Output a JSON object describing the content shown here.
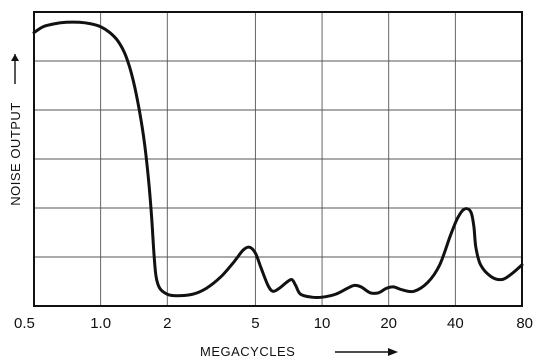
{
  "chart_data": {
    "type": "line",
    "title": "",
    "xlabel": "MEGACYCLES",
    "ylabel": "NOISE OUTPUT",
    "x_scale": "log",
    "xlim": [
      0.5,
      80
    ],
    "ylim": [
      0,
      1
    ],
    "y_tick_labels": false,
    "grid": true,
    "legend": "none",
    "x_ticks": [
      {
        "value": 0.5,
        "label": "0.5"
      },
      {
        "value": 1.0,
        "label": "1.0"
      },
      {
        "value": 2,
        "label": "2"
      },
      {
        "value": 5,
        "label": "5"
      },
      {
        "value": 10,
        "label": "10"
      },
      {
        "value": 20,
        "label": "20"
      },
      {
        "value": 40,
        "label": "40"
      },
      {
        "value": 80,
        "label": "80"
      }
    ],
    "series": [
      {
        "color": "#111111",
        "points": [
          [
            0.5,
            0.93
          ],
          [
            0.55,
            0.95
          ],
          [
            0.62,
            0.96
          ],
          [
            0.7,
            0.965
          ],
          [
            0.8,
            0.965
          ],
          [
            0.9,
            0.96
          ],
          [
            1.0,
            0.95
          ],
          [
            1.1,
            0.93
          ],
          [
            1.2,
            0.9
          ],
          [
            1.3,
            0.85
          ],
          [
            1.4,
            0.77
          ],
          [
            1.5,
            0.66
          ],
          [
            1.58,
            0.55
          ],
          [
            1.65,
            0.42
          ],
          [
            1.7,
            0.3
          ],
          [
            1.74,
            0.18
          ],
          [
            1.78,
            0.1
          ],
          [
            1.85,
            0.06
          ],
          [
            2.0,
            0.04
          ],
          [
            2.2,
            0.035
          ],
          [
            2.6,
            0.04
          ],
          [
            3.0,
            0.06
          ],
          [
            3.5,
            0.1
          ],
          [
            4.0,
            0.15
          ],
          [
            4.4,
            0.19
          ],
          [
            4.7,
            0.2
          ],
          [
            5.0,
            0.18
          ],
          [
            5.3,
            0.13
          ],
          [
            5.7,
            0.07
          ],
          [
            6.0,
            0.05
          ],
          [
            6.4,
            0.06
          ],
          [
            6.9,
            0.08
          ],
          [
            7.3,
            0.09
          ],
          [
            7.6,
            0.07
          ],
          [
            8.0,
            0.04
          ],
          [
            9.0,
            0.03
          ],
          [
            10.0,
            0.03
          ],
          [
            11.5,
            0.04
          ],
          [
            13.0,
            0.06
          ],
          [
            14.0,
            0.07
          ],
          [
            15.0,
            0.065
          ],
          [
            16.5,
            0.045
          ],
          [
            18.0,
            0.045
          ],
          [
            19.5,
            0.06
          ],
          [
            21.0,
            0.065
          ],
          [
            23.0,
            0.055
          ],
          [
            26.0,
            0.05
          ],
          [
            30.0,
            0.08
          ],
          [
            34.0,
            0.14
          ],
          [
            38.0,
            0.24
          ],
          [
            41.0,
            0.3
          ],
          [
            44.0,
            0.33
          ],
          [
            47.0,
            0.32
          ],
          [
            48.5,
            0.27
          ],
          [
            49.5,
            0.2
          ],
          [
            52.0,
            0.14
          ],
          [
            58.0,
            0.1
          ],
          [
            65.0,
            0.09
          ],
          [
            72.0,
            0.11
          ],
          [
            80.0,
            0.14
          ]
        ]
      }
    ]
  }
}
